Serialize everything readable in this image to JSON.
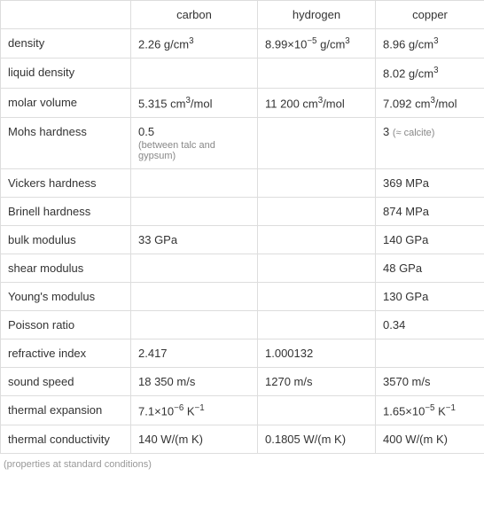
{
  "columns": [
    "",
    "carbon",
    "hydrogen",
    "copper"
  ],
  "rows": [
    {
      "label": "density",
      "carbon": "2.26 g/cm<sup>3</sup>",
      "hydrogen": "8.99×10<sup>−5</sup> g/cm<sup>3</sup>",
      "copper": "8.96 g/cm<sup>3</sup>"
    },
    {
      "label": "liquid density",
      "carbon": "",
      "hydrogen": "",
      "copper": "8.02 g/cm<sup>3</sup>"
    },
    {
      "label": "molar volume",
      "carbon": "5.315 cm<sup>3</sup>/mol",
      "hydrogen": "11 200 cm<sup>3</sup>/mol",
      "copper": "7.092 cm<sup>3</sup>/mol"
    },
    {
      "label": "Mohs hardness",
      "carbon": "0.5",
      "carbon_note": "(between talc and gypsum)",
      "hydrogen": "",
      "copper": "3 <span class=\"note-inline\">(≈ calcite)</span>"
    },
    {
      "label": "Vickers hardness",
      "carbon": "",
      "hydrogen": "",
      "copper": "369 MPa"
    },
    {
      "label": "Brinell hardness",
      "carbon": "",
      "hydrogen": "",
      "copper": "874 MPa"
    },
    {
      "label": "bulk modulus",
      "carbon": "33 GPa",
      "hydrogen": "",
      "copper": "140 GPa"
    },
    {
      "label": "shear modulus",
      "carbon": "",
      "hydrogen": "",
      "copper": "48 GPa"
    },
    {
      "label": "Young's modulus",
      "carbon": "",
      "hydrogen": "",
      "copper": "130 GPa"
    },
    {
      "label": "Poisson ratio",
      "carbon": "",
      "hydrogen": "",
      "copper": "0.34"
    },
    {
      "label": "refractive index",
      "carbon": "2.417",
      "hydrogen": "1.000132",
      "copper": ""
    },
    {
      "label": "sound speed",
      "carbon": "18 350 m/s",
      "hydrogen": "1270 m/s",
      "copper": "3570 m/s"
    },
    {
      "label": "thermal expansion",
      "carbon": "7.1×10<sup>−6</sup> K<sup>−1</sup>",
      "hydrogen": "",
      "copper": "1.65×10<sup>−5</sup> K<sup>−1</sup>"
    },
    {
      "label": "thermal conductivity",
      "carbon": "140 W/(m K)",
      "hydrogen": "0.1805 W/(m K)",
      "copper": "400 W/(m K)"
    }
  ],
  "footer": "(properties at standard conditions)",
  "style": {
    "border_color": "#dddddd",
    "text_color": "#333333",
    "note_color": "#888888",
    "footer_color": "#999999",
    "font_size": 13,
    "note_font_size": 11,
    "background": "#ffffff"
  }
}
